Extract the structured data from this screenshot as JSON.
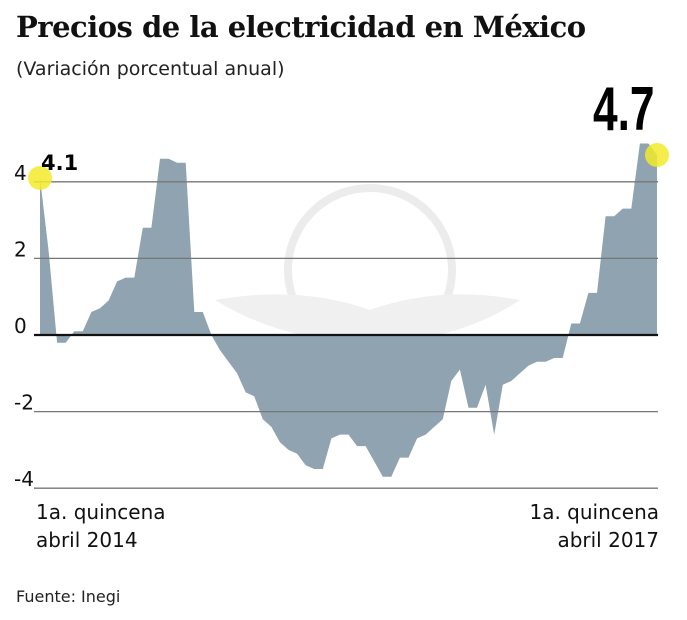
{
  "chart_data": {
    "type": "area",
    "title": "Precios de la electricidad en México",
    "subtitle": "(Variación porcentual anual)",
    "source": "Fuente: Inegi",
    "x_start_label": "1a. quincena\nabril 2014",
    "x_end_label": "1a. quincena\nabril 2017",
    "ylim": [
      -4,
      5
    ],
    "yticks": [
      4,
      2,
      0,
      -2,
      -4
    ],
    "ytick_labels": [
      "4",
      "2",
      "0",
      "-2",
      "-4"
    ],
    "grid": true,
    "values": [
      4.1,
      2.2,
      -0.2,
      -0.2,
      0.1,
      0.1,
      0.6,
      0.7,
      0.9,
      1.4,
      1.5,
      1.5,
      2.8,
      2.8,
      4.6,
      4.6,
      4.5,
      4.5,
      0.6,
      0.6,
      0.0,
      -0.4,
      -0.7,
      -1.0,
      -1.5,
      -1.6,
      -2.2,
      -2.4,
      -2.8,
      -3.0,
      -3.1,
      -3.4,
      -3.5,
      -3.5,
      -2.7,
      -2.6,
      -2.6,
      -2.9,
      -2.9,
      -3.3,
      -3.7,
      -3.7,
      -3.2,
      -3.2,
      -2.7,
      -2.6,
      -2.4,
      -2.2,
      -1.2,
      -0.9,
      -1.9,
      -1.9,
      -1.3,
      -2.6,
      -1.3,
      -1.2,
      -1.0,
      -0.8,
      -0.7,
      -0.7,
      -0.6,
      -0.6,
      0.3,
      0.3,
      1.1,
      1.1,
      3.1,
      3.1,
      3.3,
      3.3,
      5.0,
      5.0,
      4.7
    ],
    "annotations": [
      {
        "label": "4.1",
        "point": "first"
      },
      {
        "label": "4.7",
        "point": "last"
      }
    ],
    "colors": {
      "fill": "#8fa3b0",
      "highlight": "#f2ea2a",
      "grid": "#777777",
      "zero_line": "#111111"
    }
  }
}
